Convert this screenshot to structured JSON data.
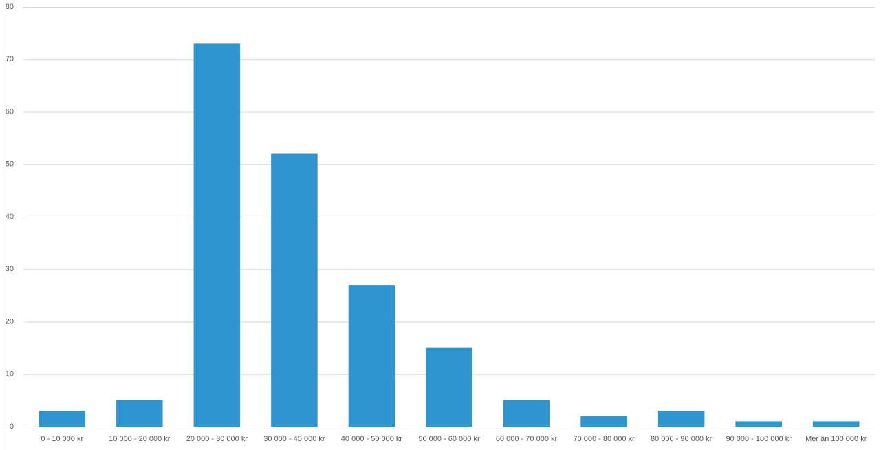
{
  "chart_data": {
    "type": "bar",
    "categories": [
      "0 - 10 000 kr",
      "10 000 - 20 000 kr",
      "20 000 - 30 000 kr",
      "30 000 - 40 000 kr",
      "40 000 - 50 000 kr",
      "50 000 - 60 000 kr",
      "60 000 - 70 000 kr",
      "70 000 - 80 000 kr",
      "80 000 - 90 000 kr",
      "90 000 - 100 000 kr",
      "Mer än 100 000 kr"
    ],
    "values": [
      3,
      5,
      73,
      52,
      27,
      15,
      5,
      2,
      3,
      1,
      1
    ],
    "color": "#2e95d1",
    "ylim": [
      0,
      80
    ],
    "yticks": [
      0,
      10,
      20,
      30,
      40,
      50,
      60,
      70,
      80
    ],
    "grid": true
  }
}
